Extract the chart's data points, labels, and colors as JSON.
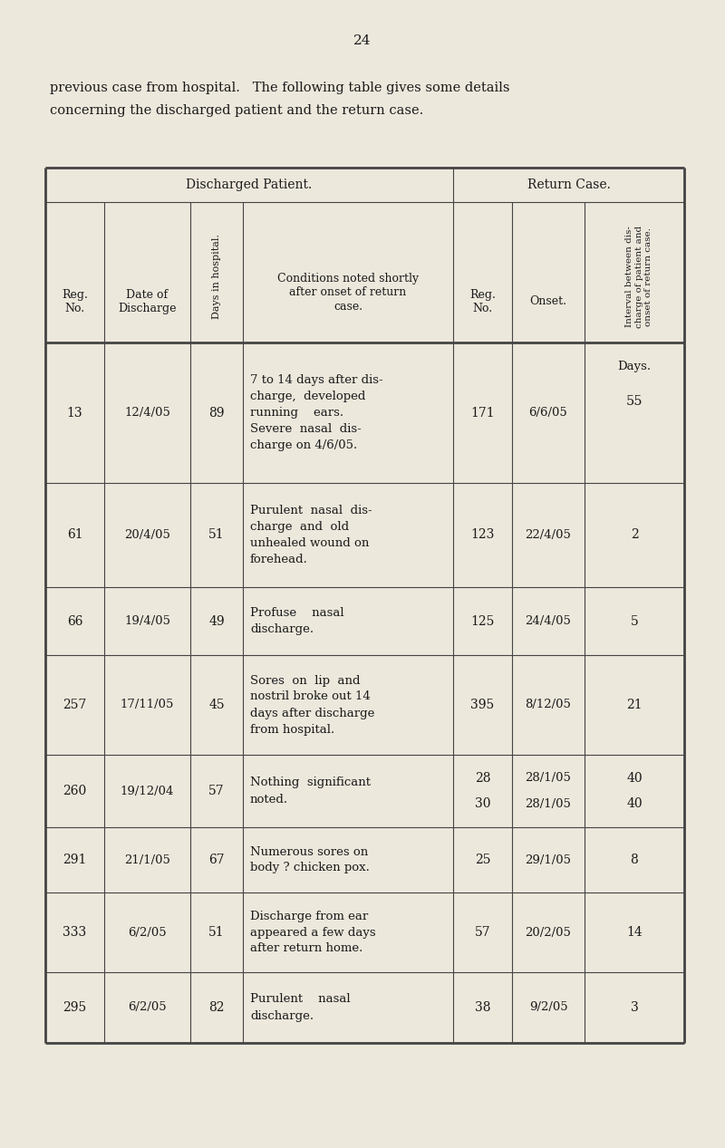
{
  "page_number": "24",
  "intro_line1": "previous case from hospital.   The following table gives some details",
  "intro_line2": "concerning the discharged patient and the return case.",
  "bg_color": "#ede8dc",
  "text_color": "#1a1a1a",
  "sec_header_dis": "Discharged Patient.",
  "sec_header_ret": "Return Case.",
  "col_header_reg_dis": "Reg.\nNo.",
  "col_header_date": "Date of\nDischarge",
  "col_header_days": "Days in hospital.",
  "col_header_cond": "Conditions noted shortly\nafter onset of return\ncase.",
  "col_header_reg_ret": "Reg.\nNo.",
  "col_header_onset": "Onset.",
  "col_header_interval": "Interval between dis-\ncharge of patient and\nonset of return case.",
  "days_label": "Days.",
  "rows": [
    {
      "dis_reg": "13",
      "dis_date": "12/4/05",
      "dis_days": "89",
      "conditions_lines": [
        "7 to 14 days after dis-",
        "charge,  developed",
        "running    ears.",
        "Severe  nasal  dis-",
        "charge on 4/6/05."
      ],
      "ret_reg": "171",
      "ret_onset": "6/6/05",
      "interval": "55",
      "interval_top": true
    },
    {
      "dis_reg": "61",
      "dis_date": "20/4/05",
      "dis_days": "51",
      "conditions_lines": [
        "Purulent  nasal  dis-",
        "charge  and  old",
        "unhealed wound on",
        "forehead."
      ],
      "ret_reg": "123",
      "ret_onset": "22/4/05",
      "interval": "2",
      "interval_top": false
    },
    {
      "dis_reg": "66",
      "dis_date": "19/4/05",
      "dis_days": "49",
      "conditions_lines": [
        "Profuse    nasal",
        "discharge."
      ],
      "ret_reg": "125",
      "ret_onset": "24/4/05",
      "interval": "5",
      "interval_top": false
    },
    {
      "dis_reg": "257",
      "dis_date": "17/11/05",
      "dis_days": "45",
      "conditions_lines": [
        "Sores  on  lip  and",
        "nostril broke out 14",
        "days after discharge",
        "from hospital."
      ],
      "ret_reg": "395",
      "ret_onset": "8/12/05",
      "interval": "21",
      "interval_top": false
    },
    {
      "dis_reg": "260",
      "dis_date": "19/12/04",
      "dis_days": "57",
      "conditions_lines": [
        "Nothing  significant",
        "noted."
      ],
      "ret_reg_lines": [
        "28",
        "30"
      ],
      "ret_onset_lines": [
        "28/1/05",
        "28/1/05"
      ],
      "interval_lines": [
        "40",
        "40"
      ],
      "ret_reg": "",
      "ret_onset": "",
      "interval": "",
      "multi_return": true,
      "interval_top": false
    },
    {
      "dis_reg": "291",
      "dis_date": "21/1/05",
      "dis_days": "67",
      "conditions_lines": [
        "Numerous sores on",
        "body ? chicken pox."
      ],
      "ret_reg": "25",
      "ret_onset": "29/1/05",
      "interval": "8",
      "interval_top": false
    },
    {
      "dis_reg": "333",
      "dis_date": "6/2/05",
      "dis_days": "51",
      "conditions_lines": [
        "Discharge from ear",
        "appeared a few days",
        "after return home."
      ],
      "ret_reg": "57",
      "ret_onset": "20/2/05",
      "interval": "14",
      "interval_top": false
    },
    {
      "dis_reg": "295",
      "dis_date": "6/2/05",
      "dis_days": "82",
      "conditions_lines": [
        "Purulent    nasal",
        "discharge."
      ],
      "ret_reg": "38",
      "ret_onset": "9/2/05",
      "interval": "3",
      "interval_top": false
    }
  ]
}
